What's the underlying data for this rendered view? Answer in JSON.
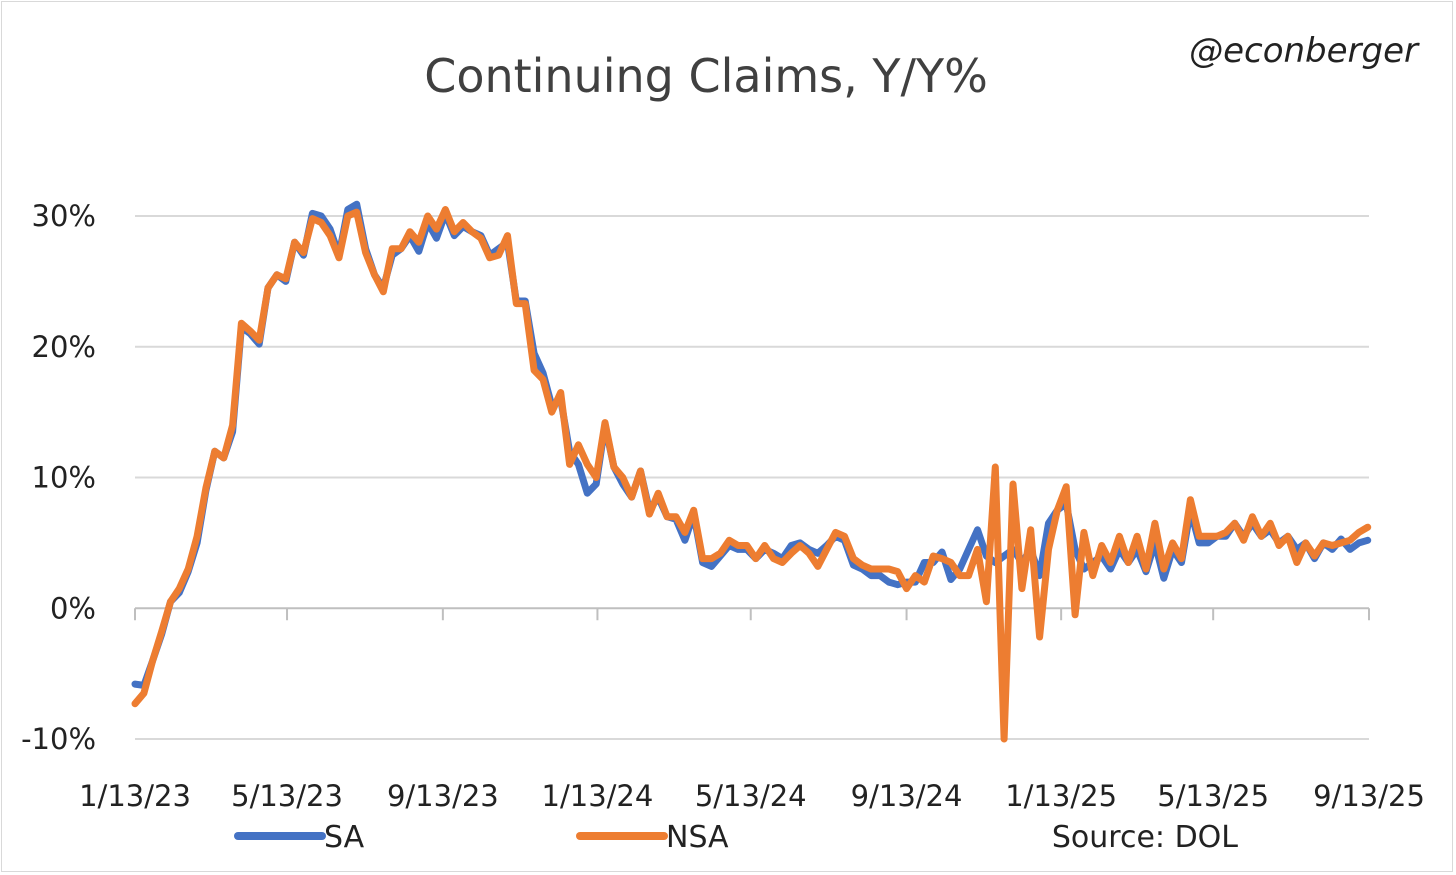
{
  "handle": "@econberger",
  "source": "Source: DOL",
  "colors": {
    "SA": "#4472c4",
    "NSA": "#ed7d31",
    "grid": "#d9d9d9",
    "axis": "#bfbfbf"
  },
  "chart_data": {
    "type": "line",
    "title": "Continuing Claims, Y/Y%",
    "xlabel": "",
    "ylabel": "",
    "ylim": [
      -10,
      30
    ],
    "yticks": [
      "-10%",
      "0%",
      "10%",
      "20%",
      "30%"
    ],
    "xticks": [
      "1/13/23",
      "5/13/23",
      "9/13/23",
      "1/13/24",
      "5/13/24",
      "9/13/24",
      "1/13/25",
      "5/13/25",
      "9/13/25"
    ],
    "x_range": [
      "1/13/23",
      "9/13/25"
    ],
    "grid": true,
    "legend_position": "bottom",
    "series": [
      {
        "name": "SA",
        "points": [
          [
            "1/13/23",
            -5.8
          ],
          [
            "1/20/23",
            -5.9
          ],
          [
            "1/27/23",
            -4.0
          ],
          [
            "2/3/23",
            -2.0
          ],
          [
            "2/10/23",
            0.5
          ],
          [
            "2/17/23",
            1.2
          ],
          [
            "2/24/23",
            2.8
          ],
          [
            "3/3/23",
            5.0
          ],
          [
            "3/10/23",
            9.0
          ],
          [
            "3/17/23",
            12.0
          ],
          [
            "3/24/23",
            11.5
          ],
          [
            "3/31/23",
            13.5
          ],
          [
            "4/7/23",
            21.5
          ],
          [
            "4/14/23",
            21.0
          ],
          [
            "4/21/23",
            20.2
          ],
          [
            "4/28/23",
            24.5
          ],
          [
            "5/5/23",
            25.5
          ],
          [
            "5/12/23",
            25.0
          ],
          [
            "5/19/23",
            28.0
          ],
          [
            "5/26/23",
            27.0
          ],
          [
            "6/2/23",
            30.2
          ],
          [
            "6/9/23",
            30.0
          ],
          [
            "6/16/23",
            29.0
          ],
          [
            "6/23/23",
            27.0
          ],
          [
            "6/30/23",
            30.5
          ],
          [
            "7/7/23",
            30.9
          ],
          [
            "7/14/23",
            27.5
          ],
          [
            "7/21/23",
            25.5
          ],
          [
            "7/28/23",
            24.5
          ],
          [
            "8/4/23",
            27.0
          ],
          [
            "8/11/23",
            27.5
          ],
          [
            "8/18/23",
            28.5
          ],
          [
            "8/25/23",
            27.3
          ],
          [
            "9/1/23",
            29.5
          ],
          [
            "9/8/23",
            28.3
          ],
          [
            "9/15/23",
            30.2
          ],
          [
            "9/22/23",
            28.5
          ],
          [
            "9/29/23",
            29.2
          ],
          [
            "10/6/23",
            28.8
          ],
          [
            "10/13/23",
            28.5
          ],
          [
            "10/20/23",
            27.0
          ],
          [
            "10/27/23",
            27.5
          ],
          [
            "11/3/23",
            28.0
          ],
          [
            "11/10/23",
            23.5
          ],
          [
            "11/17/23",
            23.5
          ],
          [
            "11/24/23",
            19.5
          ],
          [
            "12/1/23",
            18.0
          ],
          [
            "12/8/23",
            15.5
          ],
          [
            "12/15/23",
            16.0
          ],
          [
            "12/22/23",
            12.0
          ],
          [
            "12/29/23",
            11.0
          ],
          [
            "1/5/24",
            8.8
          ],
          [
            "1/12/24",
            9.5
          ],
          [
            "1/19/24",
            14.0
          ],
          [
            "1/26/24",
            10.8
          ],
          [
            "2/2/24",
            9.5
          ],
          [
            "2/9/24",
            8.5
          ],
          [
            "2/16/24",
            10.5
          ],
          [
            "2/23/24",
            7.5
          ],
          [
            "3/1/24",
            8.5
          ],
          [
            "3/8/24",
            7.0
          ],
          [
            "3/15/24",
            6.8
          ],
          [
            "3/22/24",
            5.2
          ],
          [
            "3/29/24",
            7.2
          ],
          [
            "4/5/24",
            3.5
          ],
          [
            "4/12/24",
            3.2
          ],
          [
            "4/19/24",
            4.0
          ],
          [
            "4/26/24",
            4.8
          ],
          [
            "5/3/24",
            4.5
          ],
          [
            "5/10/24",
            4.5
          ],
          [
            "5/17/24",
            3.8
          ],
          [
            "5/24/24",
            4.5
          ],
          [
            "5/31/24",
            4.2
          ],
          [
            "6/7/24",
            3.8
          ],
          [
            "6/14/24",
            4.8
          ],
          [
            "6/21/24",
            5.0
          ],
          [
            "6/28/24",
            4.5
          ],
          [
            "7/5/24",
            4.2
          ],
          [
            "7/12/24",
            4.8
          ],
          [
            "7/19/24",
            5.5
          ],
          [
            "7/26/24",
            5.2
          ],
          [
            "8/2/24",
            3.3
          ],
          [
            "8/9/24",
            3.0
          ],
          [
            "8/16/24",
            2.5
          ],
          [
            "8/23/24",
            2.5
          ],
          [
            "8/30/24",
            2.0
          ],
          [
            "9/6/24",
            1.8
          ],
          [
            "9/13/24",
            2.0
          ],
          [
            "9/20/24",
            2.0
          ],
          [
            "9/27/24",
            3.5
          ],
          [
            "10/4/24",
            3.5
          ],
          [
            "10/11/24",
            4.3
          ],
          [
            "10/18/24",
            2.2
          ],
          [
            "10/25/24",
            3.0
          ],
          [
            "11/1/24",
            4.5
          ],
          [
            "11/8/24",
            6.0
          ],
          [
            "11/15/24",
            4.0
          ],
          [
            "11/22/24",
            3.5
          ],
          [
            "11/29/24",
            4.0
          ],
          [
            "12/6/24",
            4.5
          ],
          [
            "12/13/24",
            3.5
          ],
          [
            "12/20/24",
            4.5
          ],
          [
            "12/27/24",
            2.5
          ],
          [
            "1/3/25",
            6.5
          ],
          [
            "1/10/25",
            7.5
          ],
          [
            "1/17/25",
            8.0
          ],
          [
            "1/24/25",
            4.5
          ],
          [
            "1/31/25",
            3.0
          ],
          [
            "2/7/25",
            3.5
          ],
          [
            "2/14/25",
            4.0
          ],
          [
            "2/21/25",
            3.0
          ],
          [
            "2/28/25",
            4.5
          ],
          [
            "3/7/25",
            3.5
          ],
          [
            "3/14/25",
            4.5
          ],
          [
            "3/21/25",
            2.8
          ],
          [
            "3/28/25",
            5.0
          ],
          [
            "4/4/25",
            2.3
          ],
          [
            "4/11/25",
            4.5
          ],
          [
            "4/18/25",
            3.5
          ],
          [
            "4/25/25",
            7.5
          ],
          [
            "5/2/25",
            5.0
          ],
          [
            "5/9/25",
            5.0
          ],
          [
            "5/16/25",
            5.5
          ],
          [
            "5/23/25",
            5.5
          ],
          [
            "5/30/25",
            6.5
          ],
          [
            "6/6/25",
            5.5
          ],
          [
            "6/13/25",
            6.5
          ],
          [
            "6/20/25",
            5.5
          ],
          [
            "6/27/25",
            6.0
          ],
          [
            "7/4/25",
            5.0
          ],
          [
            "7/11/25",
            5.5
          ],
          [
            "7/18/25",
            4.5
          ],
          [
            "7/25/25",
            5.0
          ],
          [
            "8/1/25",
            3.8
          ],
          [
            "8/8/25",
            5.0
          ],
          [
            "8/15/25",
            4.5
          ],
          [
            "8/22/25",
            5.3
          ],
          [
            "8/29/25",
            4.5
          ],
          [
            "9/5/25",
            5.0
          ],
          [
            "9/12/25",
            5.2
          ]
        ]
      },
      {
        "name": "NSA",
        "points": [
          [
            "1/13/23",
            -7.3
          ],
          [
            "1/20/23",
            -6.5
          ],
          [
            "1/27/23",
            -4.0
          ],
          [
            "2/3/23",
            -1.8
          ],
          [
            "2/10/23",
            0.5
          ],
          [
            "2/17/23",
            1.5
          ],
          [
            "2/24/23",
            3.0
          ],
          [
            "3/3/23",
            5.5
          ],
          [
            "3/10/23",
            9.2
          ],
          [
            "3/17/23",
            12.0
          ],
          [
            "3/24/23",
            11.5
          ],
          [
            "3/31/23",
            14.0
          ],
          [
            "4/7/23",
            21.8
          ],
          [
            "4/14/23",
            21.2
          ],
          [
            "4/21/23",
            20.5
          ],
          [
            "4/28/23",
            24.5
          ],
          [
            "5/5/23",
            25.5
          ],
          [
            "5/12/23",
            25.2
          ],
          [
            "5/19/23",
            28.0
          ],
          [
            "5/26/23",
            27.2
          ],
          [
            "6/2/23",
            29.8
          ],
          [
            "6/9/23",
            29.5
          ],
          [
            "6/16/23",
            28.5
          ],
          [
            "6/23/23",
            26.8
          ],
          [
            "6/30/23",
            30.0
          ],
          [
            "7/7/23",
            30.3
          ],
          [
            "7/14/23",
            27.2
          ],
          [
            "7/21/23",
            25.5
          ],
          [
            "7/28/23",
            24.2
          ],
          [
            "8/4/23",
            27.5
          ],
          [
            "8/11/23",
            27.5
          ],
          [
            "8/18/23",
            28.8
          ],
          [
            "8/25/23",
            28.0
          ],
          [
            "9/1/23",
            30.0
          ],
          [
            "9/8/23",
            29.0
          ],
          [
            "9/15/23",
            30.5
          ],
          [
            "9/22/23",
            28.8
          ],
          [
            "9/29/23",
            29.5
          ],
          [
            "10/6/23",
            28.8
          ],
          [
            "10/13/23",
            28.3
          ],
          [
            "10/20/23",
            26.8
          ],
          [
            "10/27/23",
            27.0
          ],
          [
            "11/3/23",
            28.5
          ],
          [
            "11/10/23",
            23.3
          ],
          [
            "11/17/23",
            23.3
          ],
          [
            "11/24/23",
            18.2
          ],
          [
            "12/1/23",
            17.5
          ],
          [
            "12/8/23",
            15.0
          ],
          [
            "12/15/23",
            16.5
          ],
          [
            "12/22/23",
            11.0
          ],
          [
            "12/29/23",
            12.5
          ],
          [
            "1/5/24",
            11.0
          ],
          [
            "1/12/24",
            10.0
          ],
          [
            "1/19/24",
            14.2
          ],
          [
            "1/26/24",
            10.8
          ],
          [
            "2/2/24",
            10.0
          ],
          [
            "2/9/24",
            8.5
          ],
          [
            "2/16/24",
            10.5
          ],
          [
            "2/23/24",
            7.2
          ],
          [
            "3/1/24",
            8.8
          ],
          [
            "3/8/24",
            7.0
          ],
          [
            "3/15/24",
            7.0
          ],
          [
            "3/22/24",
            5.8
          ],
          [
            "3/29/24",
            7.5
          ],
          [
            "4/5/24",
            3.8
          ],
          [
            "4/12/24",
            3.8
          ],
          [
            "4/19/24",
            4.2
          ],
          [
            "4/26/24",
            5.2
          ],
          [
            "5/3/24",
            4.8
          ],
          [
            "5/10/24",
            4.8
          ],
          [
            "5/17/24",
            3.8
          ],
          [
            "5/24/24",
            4.8
          ],
          [
            "5/31/24",
            3.8
          ],
          [
            "6/7/24",
            3.5
          ],
          [
            "6/14/24",
            4.2
          ],
          [
            "6/21/24",
            4.8
          ],
          [
            "6/28/24",
            4.2
          ],
          [
            "7/5/24",
            3.2
          ],
          [
            "7/12/24",
            4.5
          ],
          [
            "7/19/24",
            5.8
          ],
          [
            "7/26/24",
            5.5
          ],
          [
            "8/2/24",
            3.8
          ],
          [
            "8/9/24",
            3.3
          ],
          [
            "8/16/24",
            3.0
          ],
          [
            "8/23/24",
            3.0
          ],
          [
            "8/30/24",
            3.0
          ],
          [
            "9/6/24",
            2.8
          ],
          [
            "9/13/24",
            1.5
          ],
          [
            "9/20/24",
            2.5
          ],
          [
            "9/27/24",
            2.0
          ],
          [
            "10/4/24",
            4.0
          ],
          [
            "10/11/24",
            3.8
          ],
          [
            "10/18/24",
            3.5
          ],
          [
            "10/25/24",
            2.5
          ],
          [
            "11/1/24",
            2.5
          ],
          [
            "11/8/24",
            4.5
          ],
          [
            "11/15/24",
            0.5
          ],
          [
            "11/22/24",
            10.8
          ],
          [
            "11/29/24",
            -10.0
          ],
          [
            "12/6/24",
            9.5
          ],
          [
            "12/13/24",
            1.5
          ],
          [
            "12/20/24",
            6.0
          ],
          [
            "12/27/24",
            -2.2
          ],
          [
            "1/3/25",
            4.5
          ],
          [
            "1/10/25",
            7.5
          ],
          [
            "1/17/25",
            9.3
          ],
          [
            "1/24/25",
            -0.5
          ],
          [
            "1/31/25",
            5.8
          ],
          [
            "2/7/25",
            2.5
          ],
          [
            "2/14/25",
            4.8
          ],
          [
            "2/21/25",
            3.5
          ],
          [
            "2/28/25",
            5.5
          ],
          [
            "3/7/25",
            3.5
          ],
          [
            "3/14/25",
            5.5
          ],
          [
            "3/21/25",
            3.0
          ],
          [
            "3/28/25",
            6.5
          ],
          [
            "4/4/25",
            3.0
          ],
          [
            "4/11/25",
            5.0
          ],
          [
            "4/18/25",
            3.8
          ],
          [
            "4/25/25",
            8.3
          ],
          [
            "5/2/25",
            5.5
          ],
          [
            "5/9/25",
            5.5
          ],
          [
            "5/16/25",
            5.5
          ],
          [
            "5/23/25",
            5.8
          ],
          [
            "5/30/25",
            6.5
          ],
          [
            "6/6/25",
            5.2
          ],
          [
            "6/13/25",
            7.0
          ],
          [
            "6/20/25",
            5.5
          ],
          [
            "6/27/25",
            6.5
          ],
          [
            "7/4/25",
            4.8
          ],
          [
            "7/11/25",
            5.5
          ],
          [
            "7/18/25",
            3.5
          ],
          [
            "7/25/25",
            5.0
          ],
          [
            "8/1/25",
            4.0
          ],
          [
            "8/8/25",
            5.0
          ],
          [
            "8/15/25",
            4.8
          ],
          [
            "8/22/25",
            5.0
          ],
          [
            "8/29/25",
            5.2
          ],
          [
            "9/5/25",
            5.8
          ],
          [
            "9/12/25",
            6.2
          ]
        ]
      }
    ]
  }
}
